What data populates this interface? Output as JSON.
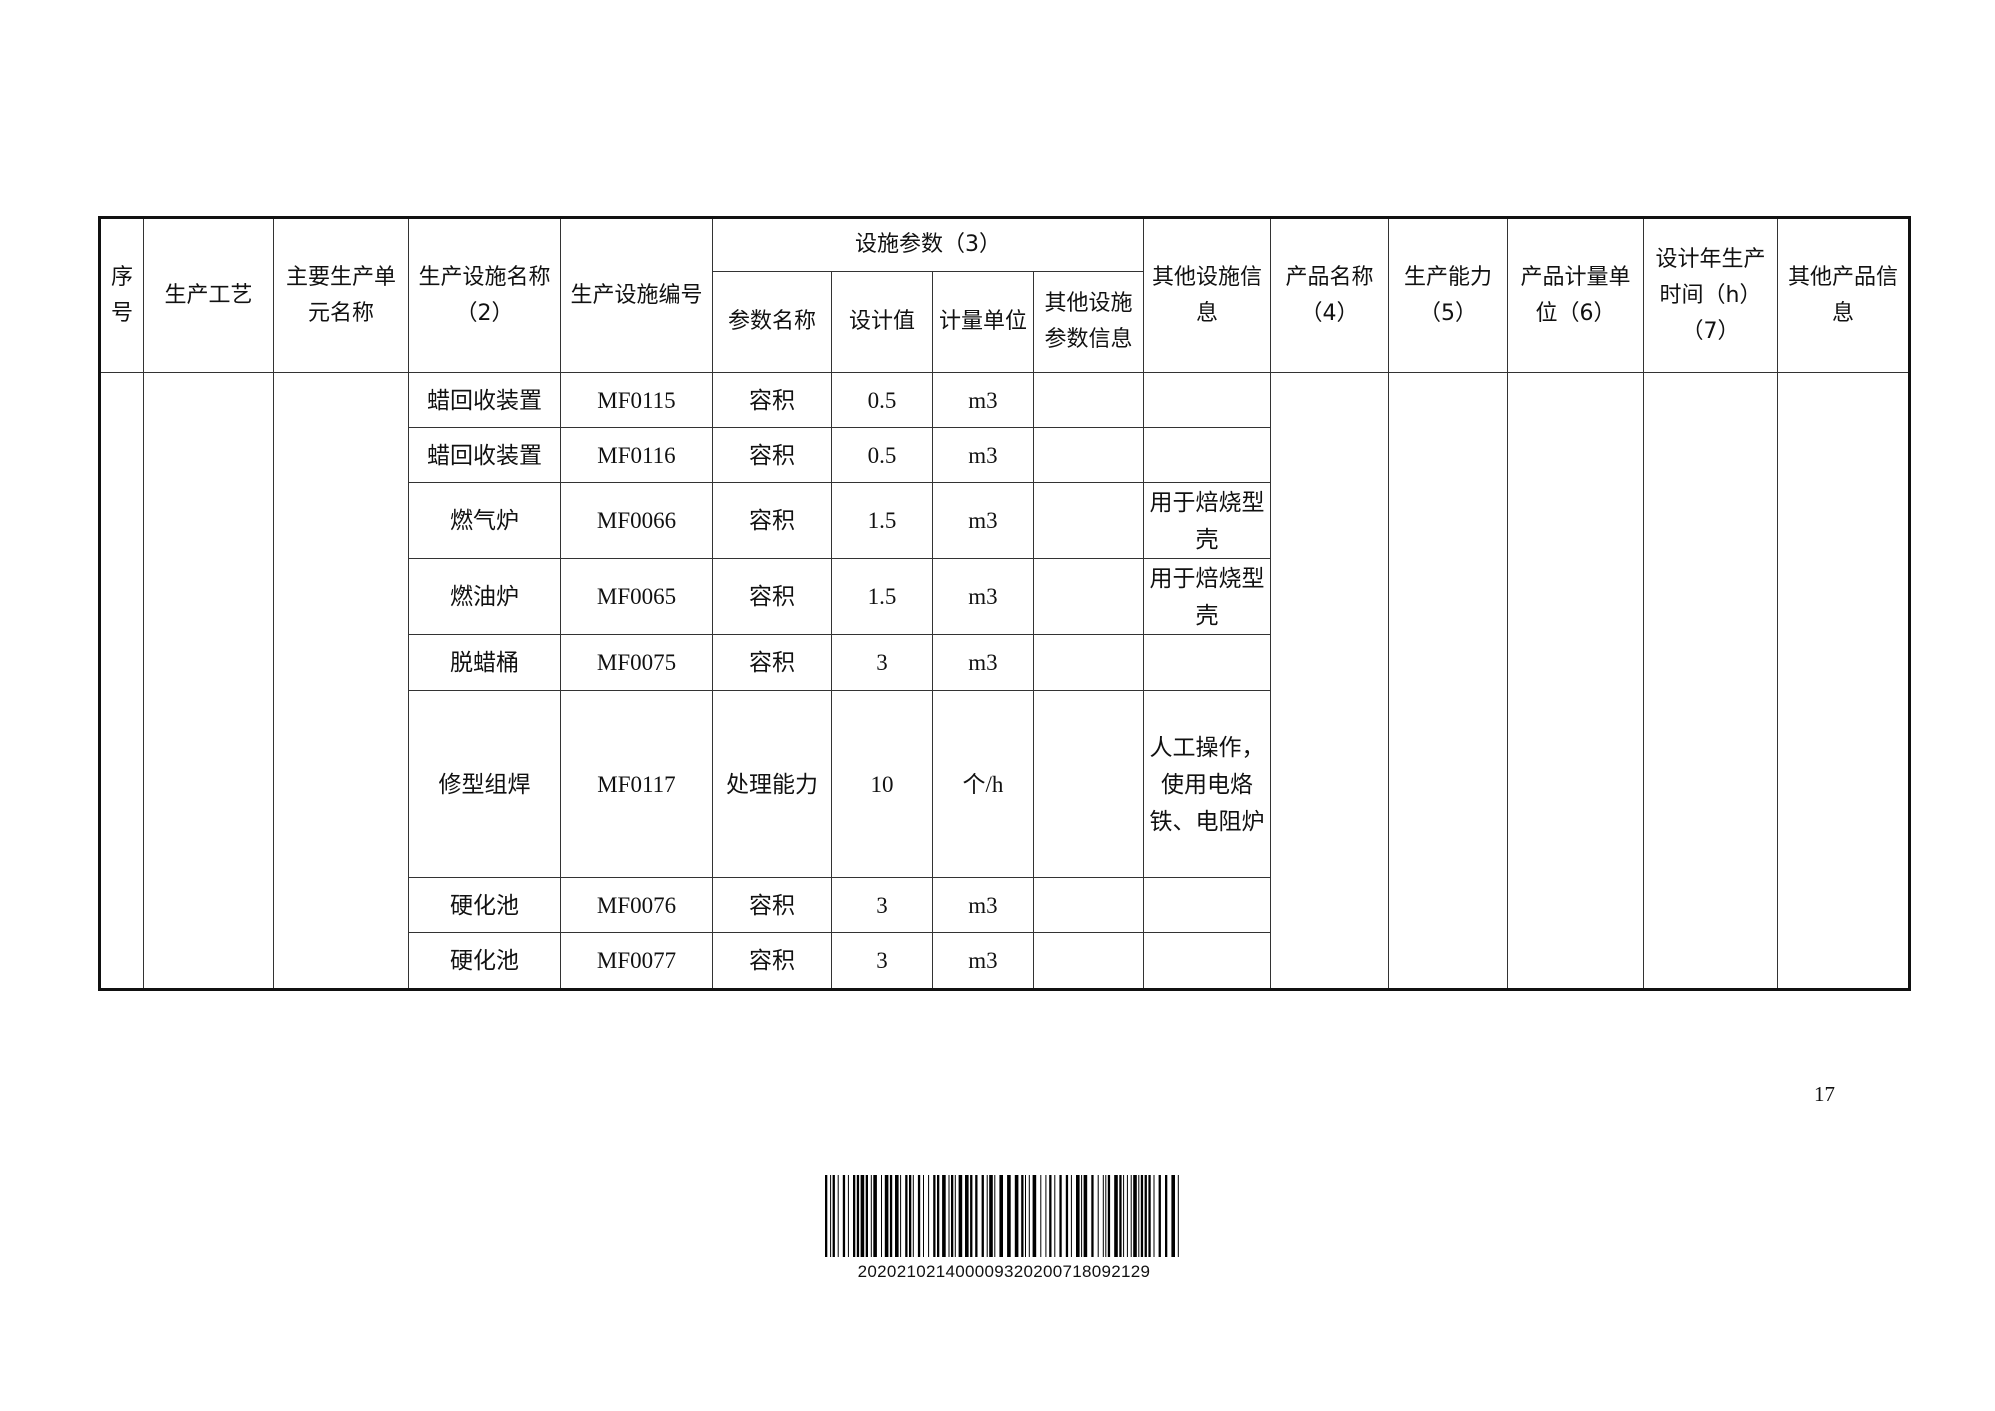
{
  "table": {
    "headers": {
      "seq": "序号",
      "process": "生产工艺",
      "unit": "主要生产单元名称",
      "facility_name": "生产设施名称（2）",
      "facility_code": "生产设施编号",
      "params_group": "设施参数（3）",
      "param_name": "参数名称",
      "design_value": "设计值",
      "unit_of_measure": "计量单位",
      "other_param": "其他设施参数信息",
      "other_facility": "其他设施信息",
      "product_name": "产品名称（4）",
      "capacity": "生产能力（5）",
      "product_unit": "产品计量单位（6）",
      "design_hours": "设计年生产时间（h）（7）",
      "other_product": "其他产品信息"
    },
    "rows": [
      {
        "facility_name": "蜡回收装置",
        "facility_code": "MF0115",
        "param_name": "容积",
        "design_value": "0.5",
        "unit": "m3",
        "other_param": "",
        "other_facility": ""
      },
      {
        "facility_name": "蜡回收装置",
        "facility_code": "MF0116",
        "param_name": "容积",
        "design_value": "0.5",
        "unit": "m3",
        "other_param": "",
        "other_facility": ""
      },
      {
        "facility_name": "燃气炉",
        "facility_code": "MF0066",
        "param_name": "容积",
        "design_value": "1.5",
        "unit": "m3",
        "other_param": "",
        "other_facility": "用于焙烧型壳"
      },
      {
        "facility_name": "燃油炉",
        "facility_code": "MF0065",
        "param_name": "容积",
        "design_value": "1.5",
        "unit": "m3",
        "other_param": "",
        "other_facility": "用于焙烧型壳"
      },
      {
        "facility_name": "脱蜡桶",
        "facility_code": "MF0075",
        "param_name": "容积",
        "design_value": "3",
        "unit": "m3",
        "other_param": "",
        "other_facility": ""
      },
      {
        "facility_name": "修型组焊",
        "facility_code": "MF0117",
        "param_name": "处理能力",
        "design_value": "10",
        "unit": "个/h",
        "other_param": "",
        "other_facility": "人工操作，使用电烙铁、电阻炉"
      },
      {
        "facility_name": "硬化池",
        "facility_code": "MF0076",
        "param_name": "容积",
        "design_value": "3",
        "unit": "m3",
        "other_param": "",
        "other_facility": ""
      },
      {
        "facility_name": "硬化池",
        "facility_code": "MF0077",
        "param_name": "容积",
        "design_value": "3",
        "unit": "m3",
        "other_param": "",
        "other_facility": ""
      }
    ]
  },
  "page_number": "17",
  "barcode": {
    "text": "202021021400009320200718092129"
  }
}
